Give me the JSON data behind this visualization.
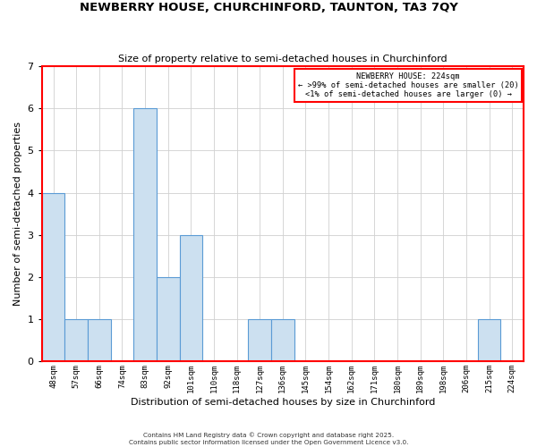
{
  "title": "NEWBERRY HOUSE, CHURCHINFORD, TAUNTON, TA3 7QY",
  "subtitle": "Size of property relative to semi-detached houses in Churchinford",
  "xlabel": "Distribution of semi-detached houses by size in Churchinford",
  "ylabel": "Number of semi-detached properties",
  "bin_labels": [
    "48sqm",
    "57sqm",
    "66sqm",
    "74sqm",
    "83sqm",
    "92sqm",
    "101sqm",
    "110sqm",
    "118sqm",
    "127sqm",
    "136sqm",
    "145sqm",
    "154sqm",
    "162sqm",
    "171sqm",
    "180sqm",
    "189sqm",
    "198sqm",
    "206sqm",
    "215sqm",
    "224sqm"
  ],
  "counts": [
    4,
    1,
    1,
    0,
    6,
    2,
    3,
    0,
    0,
    1,
    1,
    0,
    0,
    0,
    0,
    0,
    0,
    0,
    0,
    1,
    0
  ],
  "bar_color": "#cce0f0",
  "bar_edge_color": "#5b9bd5",
  "grid_color": "#d0d0d0",
  "ylim": [
    0,
    7
  ],
  "yticks": [
    0,
    1,
    2,
    3,
    4,
    5,
    6,
    7
  ],
  "legend_title": "NEWBERRY HOUSE: 224sqm",
  "legend_line1": "← >99% of semi-detached houses are smaller (20)",
  "legend_line2": "<1% of semi-detached houses are larger (0) →",
  "legend_box_color": "white",
  "legend_box_edge_color": "red",
  "footer_line1": "Contains HM Land Registry data © Crown copyright and database right 2025.",
  "footer_line2": "Contains public sector information licensed under the Open Government Licence v3.0.",
  "bg_color": "white",
  "border_color": "red"
}
